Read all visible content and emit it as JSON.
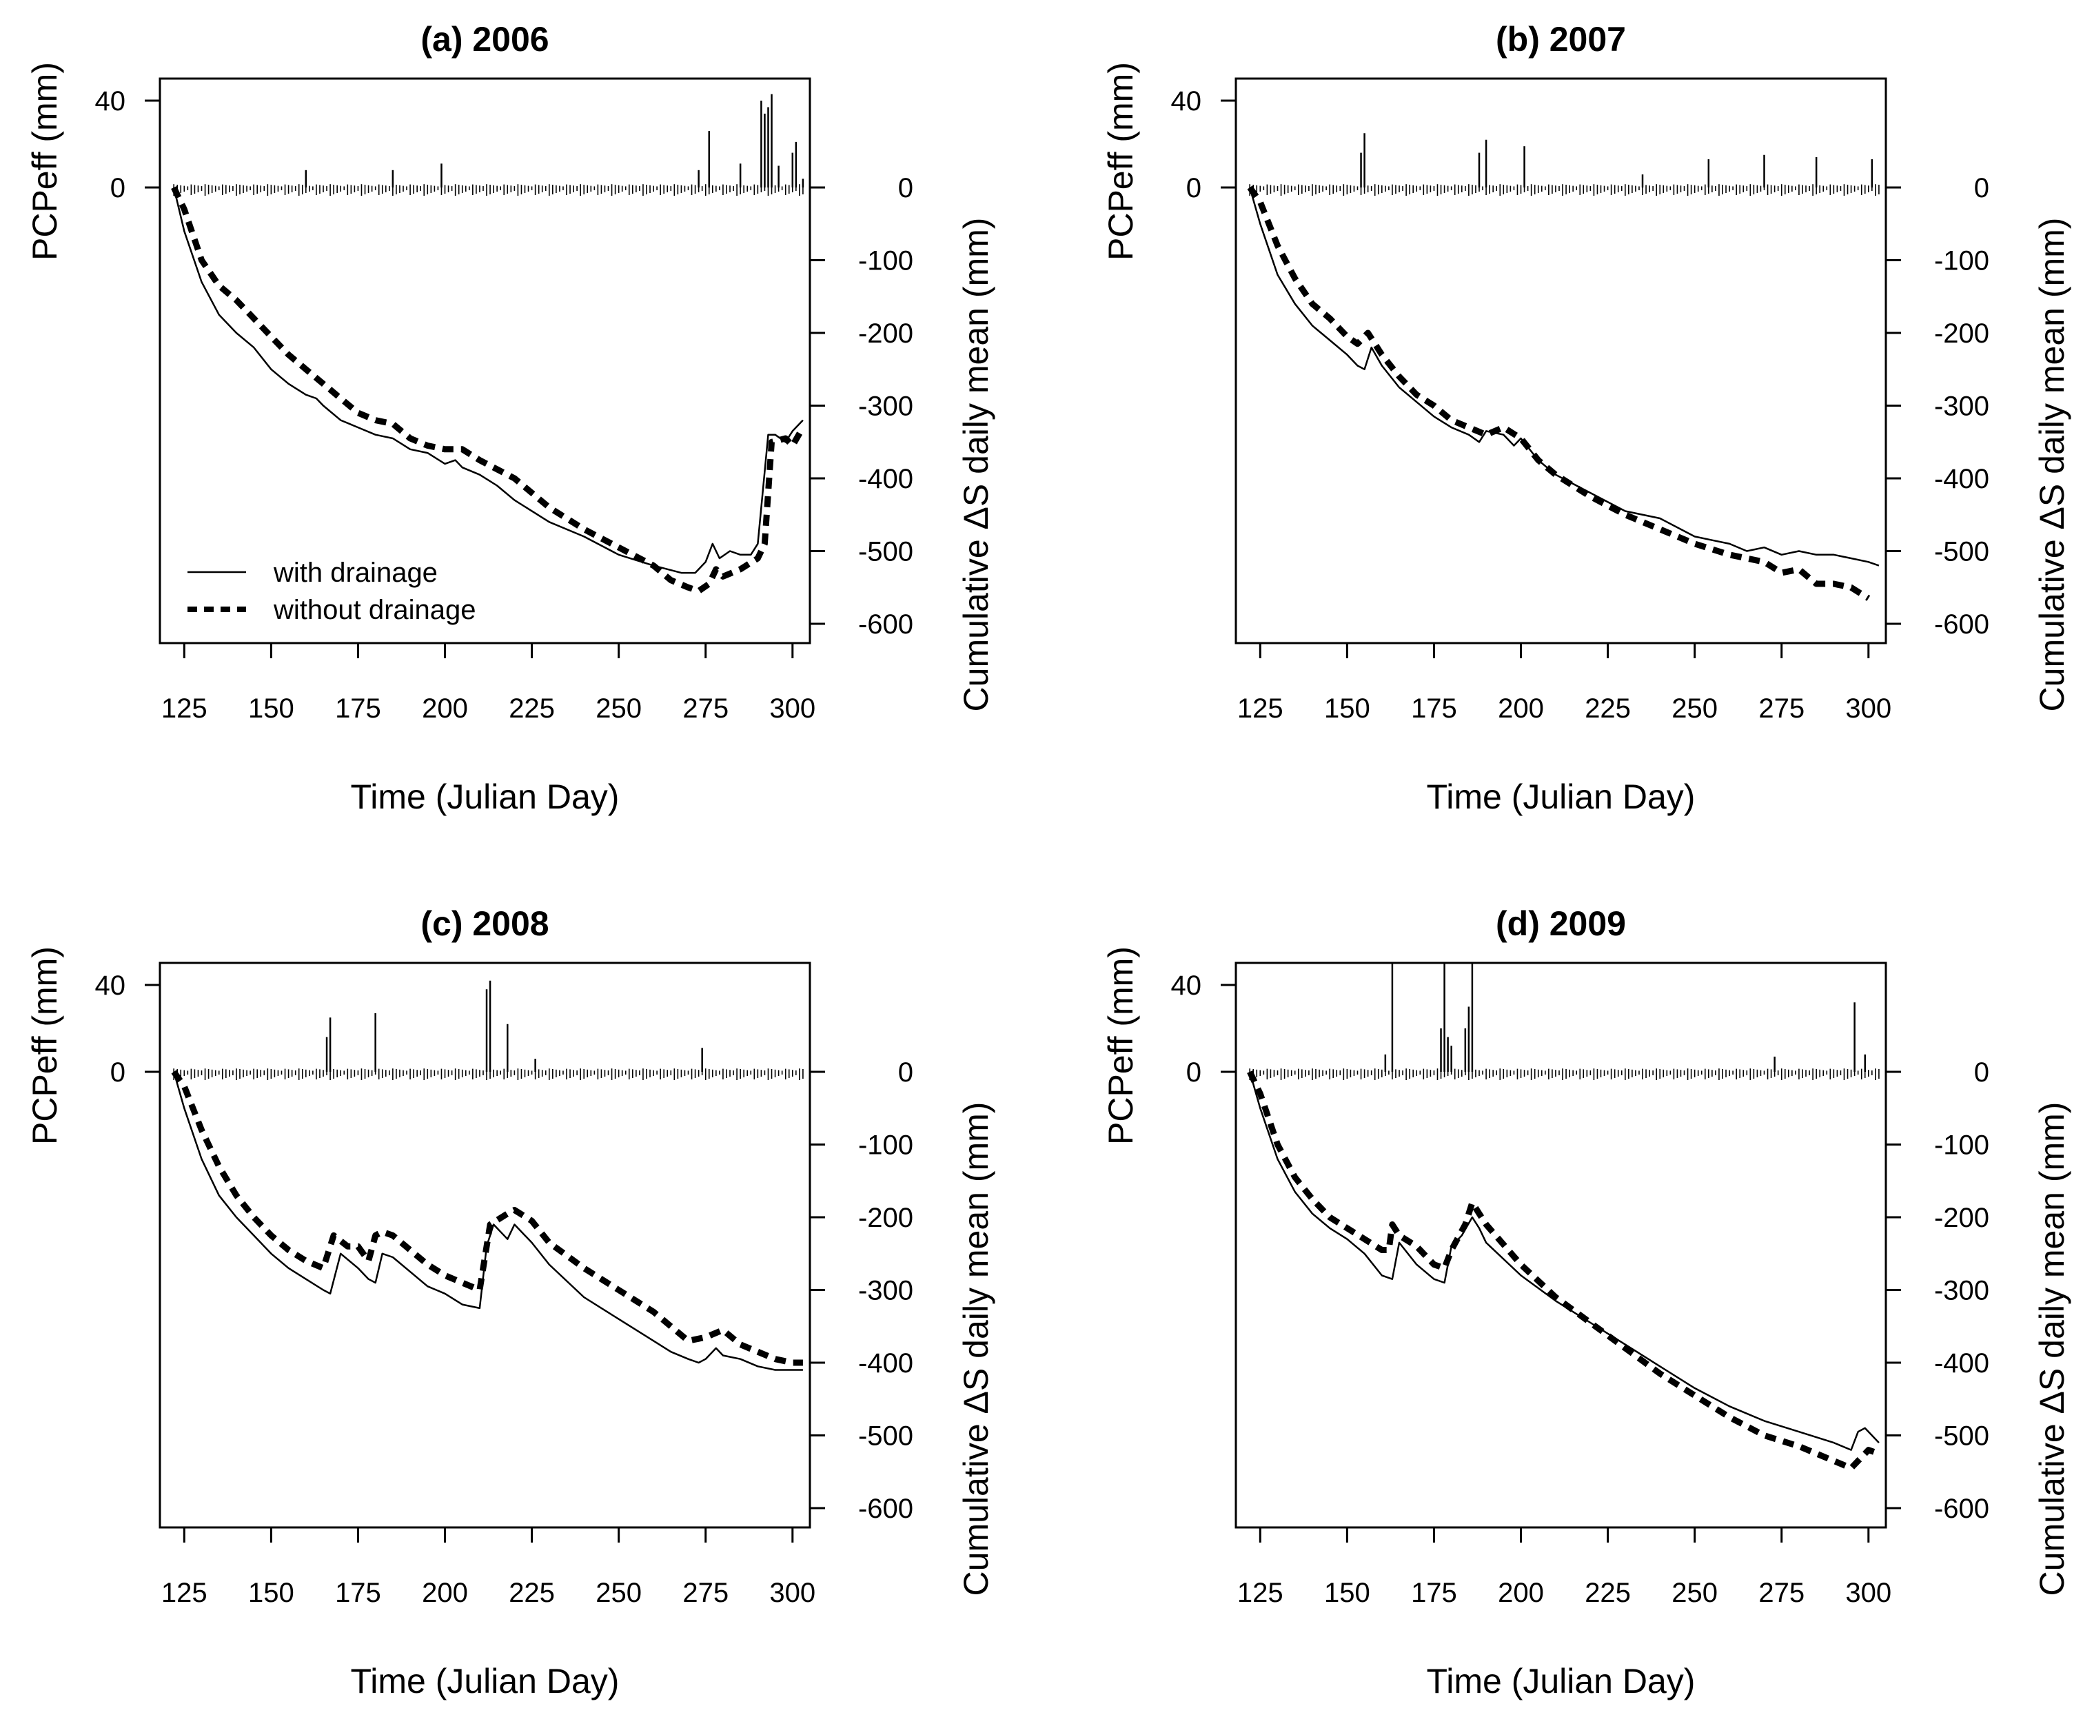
{
  "figure": {
    "legend": {
      "solid_label": "with drainage",
      "dashed_label": "without drainage"
    },
    "colors": {
      "line": "#000000",
      "background": "#ffffff"
    }
  },
  "chart_data": [
    {
      "type": "line",
      "title": "(a) 2006",
      "xlabel": "Time (Julian Day)",
      "ylabel_left": "PCPeff (mm)",
      "ylabel_right": "Cumulative ΔS daily mean  (mm)",
      "xlim": [
        118,
        305
      ],
      "x_ticks": [
        125,
        150,
        175,
        200,
        225,
        250,
        275,
        300
      ],
      "left_ticks": [
        0,
        40
      ],
      "right_ticks": [
        0,
        -100,
        -200,
        -300,
        -400,
        -500,
        -600
      ],
      "legend": true,
      "pcp_spikes": [
        [
          160,
          8
        ],
        [
          185,
          8
        ],
        [
          199,
          11
        ],
        [
          276,
          26
        ],
        [
          273,
          8
        ],
        [
          285,
          11
        ],
        [
          291,
          40
        ],
        [
          292,
          34
        ],
        [
          293,
          37
        ],
        [
          294,
          43
        ],
        [
          296,
          10
        ],
        [
          300,
          16
        ],
        [
          301,
          21
        ],
        [
          303,
          4
        ]
      ],
      "series": [
        {
          "name": "with drainage",
          "style": "solid",
          "x": [
            122,
            125,
            130,
            135,
            140,
            145,
            150,
            155,
            160,
            163,
            165,
            170,
            175,
            180,
            185,
            190,
            195,
            200,
            203,
            205,
            210,
            215,
            220,
            230,
            240,
            250,
            260,
            268,
            272,
            275,
            277,
            279,
            282,
            285,
            288,
            290,
            293,
            295,
            298,
            300,
            303
          ],
          "y": [
            0,
            -60,
            -130,
            -175,
            -200,
            -220,
            -250,
            -270,
            -285,
            -290,
            -300,
            -320,
            -330,
            -340,
            -345,
            -360,
            -365,
            -380,
            -375,
            -385,
            -395,
            -410,
            -430,
            -460,
            -480,
            -505,
            -520,
            -530,
            -530,
            -515,
            -490,
            -510,
            -500,
            -505,
            -505,
            -490,
            -340,
            -340,
            -350,
            -335,
            -320
          ]
        },
        {
          "name": "without drainage",
          "style": "dashed",
          "x": [
            122,
            125,
            130,
            135,
            140,
            145,
            150,
            155,
            160,
            165,
            170,
            175,
            180,
            185,
            190,
            195,
            200,
            205,
            210,
            220,
            230,
            240,
            250,
            260,
            265,
            270,
            273,
            276,
            278,
            280,
            285,
            290,
            292,
            294,
            298,
            300,
            303
          ],
          "y": [
            0,
            -30,
            -100,
            -135,
            -155,
            -180,
            -205,
            -230,
            -250,
            -270,
            -290,
            -310,
            -320,
            -325,
            -345,
            -355,
            -360,
            -360,
            -375,
            -400,
            -440,
            -470,
            -495,
            -520,
            -540,
            -550,
            -555,
            -545,
            -525,
            -535,
            -525,
            -510,
            -490,
            -350,
            -345,
            -355,
            -330
          ]
        }
      ]
    },
    {
      "type": "line",
      "title": "(b) 2007",
      "xlabel": "Time (Julian Day)",
      "ylabel_left": "PCPeff (mm)",
      "ylabel_right": "Cumulative ΔS daily mean  (mm)",
      "xlim": [
        118,
        305
      ],
      "x_ticks": [
        125,
        150,
        175,
        200,
        225,
        250,
        275,
        300
      ],
      "left_ticks": [
        0,
        40
      ],
      "right_ticks": [
        0,
        -100,
        -200,
        -300,
        -400,
        -500,
        -600
      ],
      "legend": false,
      "pcp_spikes": [
        [
          154,
          16
        ],
        [
          155,
          25
        ],
        [
          188,
          16
        ],
        [
          190,
          22
        ],
        [
          201,
          19
        ],
        [
          235,
          6
        ],
        [
          254,
          13
        ],
        [
          270,
          15
        ],
        [
          285,
          14
        ],
        [
          301,
          13
        ]
      ],
      "series": [
        {
          "name": "with drainage",
          "style": "solid",
          "x": [
            122,
            125,
            130,
            135,
            140,
            145,
            150,
            153,
            155,
            157,
            160,
            165,
            170,
            175,
            180,
            185,
            188,
            190,
            195,
            198,
            200,
            205,
            210,
            220,
            230,
            240,
            250,
            255,
            260,
            265,
            270,
            275,
            280,
            285,
            290,
            295,
            300,
            303
          ],
          "y": [
            0,
            -50,
            -120,
            -160,
            -190,
            -210,
            -230,
            -245,
            -250,
            -220,
            -245,
            -275,
            -295,
            -315,
            -330,
            -340,
            -350,
            -335,
            -340,
            -355,
            -345,
            -375,
            -395,
            -420,
            -445,
            -455,
            -480,
            -485,
            -490,
            -500,
            -495,
            -505,
            -500,
            -505,
            -505,
            -510,
            -515,
            -520
          ]
        },
        {
          "name": "without drainage",
          "style": "dashed",
          "x": [
            122,
            125,
            130,
            135,
            140,
            145,
            150,
            153,
            156,
            158,
            160,
            165,
            170,
            175,
            180,
            185,
            190,
            195,
            200,
            205,
            210,
            220,
            230,
            240,
            250,
            260,
            270,
            275,
            280,
            285,
            290,
            295,
            300
          ],
          "y": [
            0,
            -20,
            -80,
            -125,
            -160,
            -180,
            -205,
            -215,
            -200,
            -215,
            -230,
            -260,
            -285,
            -300,
            -320,
            -330,
            -340,
            -330,
            -345,
            -375,
            -395,
            -425,
            -450,
            -470,
            -490,
            -505,
            -515,
            -530,
            -525,
            -545,
            -545,
            -550,
            -565
          ]
        }
      ]
    },
    {
      "type": "line",
      "title": "(c) 2008",
      "xlabel": "Time (Julian Day)",
      "ylabel_left": "PCPeff (mm)",
      "ylabel_right": "Cumulative ΔS daily mean  (mm)",
      "xlim": [
        118,
        305
      ],
      "x_ticks": [
        125,
        150,
        175,
        200,
        225,
        250,
        275,
        300
      ],
      "left_ticks": [
        0,
        40
      ],
      "right_ticks": [
        0,
        -100,
        -200,
        -300,
        -400,
        -500,
        -600
      ],
      "legend": false,
      "pcp_spikes": [
        [
          166,
          16
        ],
        [
          167,
          25
        ],
        [
          180,
          27
        ],
        [
          212,
          38
        ],
        [
          213,
          42
        ],
        [
          218,
          22
        ],
        [
          226,
          6
        ],
        [
          274,
          11
        ]
      ],
      "series": [
        {
          "name": "with drainage",
          "style": "solid",
          "x": [
            122,
            125,
            130,
            135,
            140,
            145,
            150,
            155,
            160,
            165,
            167,
            170,
            175,
            178,
            180,
            182,
            185,
            190,
            195,
            200,
            205,
            210,
            212,
            214,
            218,
            220,
            225,
            230,
            240,
            250,
            260,
            265,
            270,
            273,
            275,
            278,
            280,
            285,
            290,
            295,
            300,
            303
          ],
          "y": [
            0,
            -50,
            -120,
            -170,
            -200,
            -225,
            -250,
            -270,
            -285,
            -300,
            -305,
            -250,
            -270,
            -285,
            -290,
            -250,
            -255,
            -275,
            -295,
            -305,
            -320,
            -325,
            -240,
            -210,
            -230,
            -210,
            -235,
            -265,
            -310,
            -340,
            -370,
            -385,
            -395,
            -400,
            -395,
            -380,
            -390,
            -395,
            -405,
            -410,
            -410,
            -410
          ]
        },
        {
          "name": "without drainage",
          "style": "dashed",
          "x": [
            122,
            125,
            130,
            135,
            140,
            145,
            150,
            155,
            160,
            165,
            168,
            172,
            175,
            178,
            180,
            182,
            185,
            190,
            195,
            200,
            205,
            210,
            213,
            218,
            220,
            225,
            230,
            240,
            250,
            260,
            265,
            270,
            275,
            280,
            285,
            290,
            295,
            300,
            303
          ],
          "y": [
            0,
            -20,
            -80,
            -130,
            -170,
            -200,
            -225,
            -245,
            -260,
            -270,
            -225,
            -240,
            -240,
            -260,
            -225,
            -220,
            -225,
            -245,
            -265,
            -280,
            -290,
            -300,
            -210,
            -195,
            -190,
            -205,
            -235,
            -270,
            -300,
            -330,
            -350,
            -370,
            -365,
            -355,
            -375,
            -385,
            -395,
            -400,
            -400
          ]
        }
      ]
    },
    {
      "type": "line",
      "title": "(d) 2009",
      "xlabel": "Time (Julian Day)",
      "ylabel_left": "PCPeff (mm)",
      "ylabel_right": "Cumulative ΔS daily mean  (mm)",
      "xlim": [
        118,
        305
      ],
      "x_ticks": [
        125,
        150,
        175,
        200,
        225,
        250,
        275,
        300
      ],
      "left_ticks": [
        0,
        40
      ],
      "right_ticks": [
        0,
        -100,
        -200,
        -300,
        -400,
        -500,
        -600
      ],
      "legend": false,
      "pcp_spikes": [
        [
          161,
          8
        ],
        [
          163,
          50
        ],
        [
          177,
          20
        ],
        [
          178,
          50
        ],
        [
          179,
          16
        ],
        [
          180,
          12
        ],
        [
          184,
          20
        ],
        [
          185,
          30
        ],
        [
          186,
          50
        ],
        [
          273,
          7
        ],
        [
          296,
          32
        ],
        [
          299,
          8
        ]
      ],
      "series": [
        {
          "name": "with drainage",
          "style": "solid",
          "x": [
            122,
            125,
            130,
            135,
            140,
            145,
            150,
            155,
            160,
            163,
            165,
            170,
            175,
            178,
            180,
            183,
            186,
            188,
            190,
            200,
            210,
            220,
            230,
            240,
            250,
            260,
            270,
            280,
            290,
            295,
            297,
            299,
            303
          ],
          "y": [
            0,
            -50,
            -120,
            -165,
            -195,
            -215,
            -230,
            -250,
            -280,
            -285,
            -235,
            -265,
            -285,
            -290,
            -240,
            -225,
            -200,
            -215,
            -235,
            -280,
            -315,
            -345,
            -375,
            -405,
            -435,
            -460,
            -480,
            -495,
            -510,
            -520,
            -495,
            -490,
            -510
          ]
        },
        {
          "name": "without drainage",
          "style": "dashed",
          "x": [
            122,
            125,
            130,
            135,
            140,
            145,
            150,
            155,
            160,
            162,
            163,
            165,
            170,
            175,
            178,
            180,
            184,
            186,
            188,
            190,
            200,
            210,
            220,
            230,
            240,
            250,
            260,
            270,
            280,
            290,
            295,
            298,
            300,
            303
          ],
          "y": [
            0,
            -30,
            -100,
            -145,
            -175,
            -200,
            -215,
            -230,
            -245,
            -245,
            -210,
            -225,
            -240,
            -265,
            -270,
            -245,
            -210,
            -180,
            -195,
            -210,
            -265,
            -310,
            -345,
            -380,
            -415,
            -445,
            -475,
            -500,
            -515,
            -535,
            -545,
            -530,
            -520,
            -525
          ]
        }
      ]
    }
  ]
}
